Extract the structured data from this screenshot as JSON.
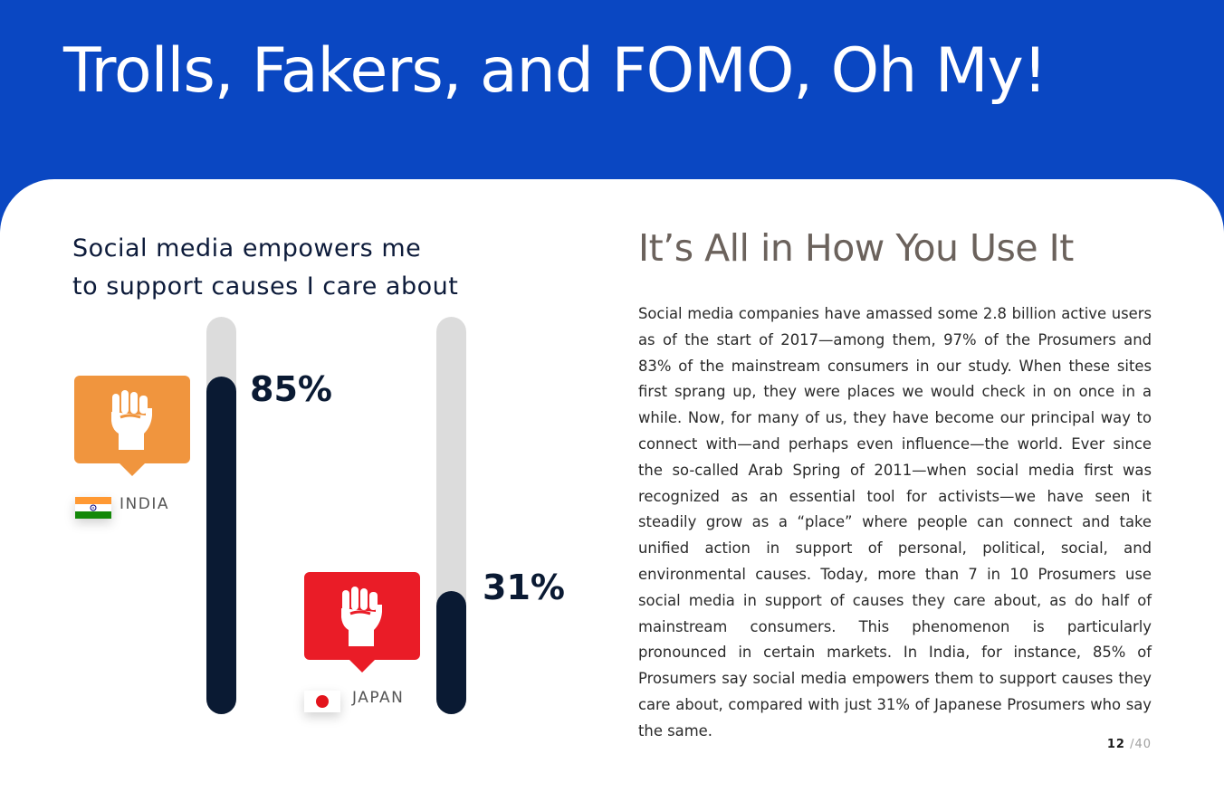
{
  "header": {
    "title": "Trolls, Fakers, and FOMO, Oh My!"
  },
  "chart": {
    "title_line1": "Social media empowers me",
    "title_line2": "to support causes I care about"
  },
  "chart_data": {
    "type": "bar",
    "title": "Social media empowers me to support causes I care about",
    "categories": [
      "INDIA",
      "JAPAN"
    ],
    "values": [
      85,
      31
    ],
    "value_labels": [
      "85%",
      "31%"
    ],
    "ylim": [
      0,
      100
    ],
    "colors": {
      "fill": "#0a1a33",
      "track": "#dcdcdc",
      "india_bubble": "#f0953e",
      "japan_bubble": "#ea1c27"
    },
    "icons": [
      "raised-fist-icon",
      "raised-fist-icon"
    ]
  },
  "article": {
    "heading": "It’s All in How You Use It",
    "body": "Social media companies have amassed some 2.8 billion active users as of the start of 2017—among them, 97% of the Prosumers and 83% of the mainstream consumers in our study. When these sites first sprang up, they were places we would check in on once in a while. Now, for many of us, they have become our principal way to connect with—and perhaps even influence—the world. Ever since the so-called Arab Spring of 2011—when social media first was recognized as an essential tool for activists—we have seen it steadily grow as a “place” where people can connect and take unified action in support of personal, political, social, and environmental causes. Today, more than 7 in 10 Prosumers use social media in support of causes they care about, as do half of mainstream consumers. This phenomenon is particularly pronounced in certain markets. In India, for instance, 85% of Prosumers say social media empowers them to support causes they care about, compared with just 31% of Japanese Prosumers who say the same."
  },
  "pagination": {
    "current": "12",
    "total": "/40"
  }
}
